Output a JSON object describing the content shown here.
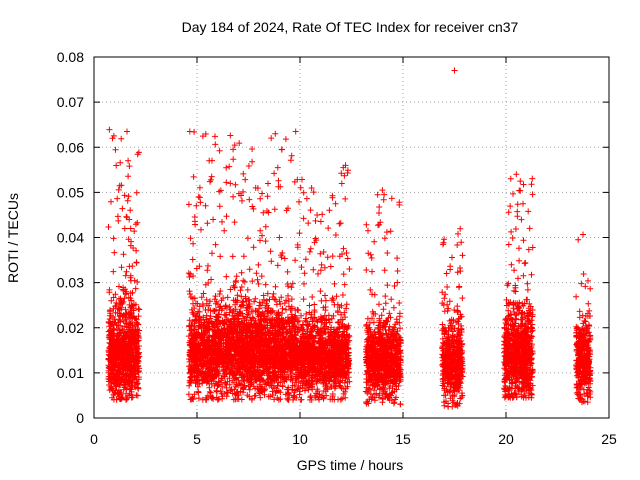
{
  "chart_data": {
    "type": "scatter",
    "title": "Day 184 of 2024, Rate Of TEC Index for receiver cn37",
    "xlabel": "GPS time / hours",
    "ylabel": "ROTI / TECUs",
    "xlim": [
      0,
      25
    ],
    "ylim": [
      0,
      0.08
    ],
    "x_ticks": [
      0,
      5,
      10,
      15,
      20,
      25
    ],
    "x_tick_labels": [
      "0",
      "5",
      "10",
      "15",
      "20",
      "25"
    ],
    "y_ticks": [
      0,
      0.01,
      0.02,
      0.03,
      0.04,
      0.05,
      0.06,
      0.07,
      0.08
    ],
    "y_tick_labels": [
      "0",
      "0.01",
      "0.02",
      "0.03",
      "0.04",
      "0.05",
      "0.06",
      "0.07",
      "0.08"
    ],
    "grid": true,
    "marker": "plus",
    "marker_color": "#ff0000",
    "clusters": [
      {
        "x_range": [
          0.7,
          2.2
        ],
        "y_center": 0.0125,
        "y_spread": 0.006,
        "y_min": 0.004,
        "y_max": 0.064,
        "density": 900
      },
      {
        "x_range": [
          4.6,
          9.8
        ],
        "y_center": 0.013,
        "y_spread": 0.006,
        "y_min": 0.004,
        "y_max": 0.064,
        "density": 2600
      },
      {
        "x_range": [
          9.8,
          12.4
        ],
        "y_center": 0.012,
        "y_spread": 0.005,
        "y_min": 0.004,
        "y_max": 0.056,
        "density": 1200
      },
      {
        "x_range": [
          13.2,
          14.9
        ],
        "y_center": 0.011,
        "y_spread": 0.005,
        "y_min": 0.003,
        "y_max": 0.051,
        "density": 800
      },
      {
        "x_range": [
          16.9,
          17.9
        ],
        "y_center": 0.011,
        "y_spread": 0.005,
        "y_min": 0.0025,
        "y_max": 0.042,
        "density": 450
      },
      {
        "x_range": [
          19.9,
          21.3
        ],
        "y_center": 0.012,
        "y_spread": 0.006,
        "y_min": 0.0045,
        "y_max": 0.054,
        "density": 800
      },
      {
        "x_range": [
          23.4,
          24.1
        ],
        "y_center": 0.011,
        "y_spread": 0.005,
        "y_min": 0.0035,
        "y_max": 0.043,
        "density": 350
      }
    ],
    "notable_points": [
      {
        "x": 17.5,
        "y": 0.077
      },
      {
        "x": 4.65,
        "y": 0.0635
      },
      {
        "x": 1.6,
        "y": 0.0635
      },
      {
        "x": 8.8,
        "y": 0.063
      },
      {
        "x": 0.9,
        "y": 0.062
      },
      {
        "x": 12.1,
        "y": 0.0555
      },
      {
        "x": 20.5,
        "y": 0.054
      },
      {
        "x": 14.0,
        "y": 0.0505
      }
    ]
  }
}
